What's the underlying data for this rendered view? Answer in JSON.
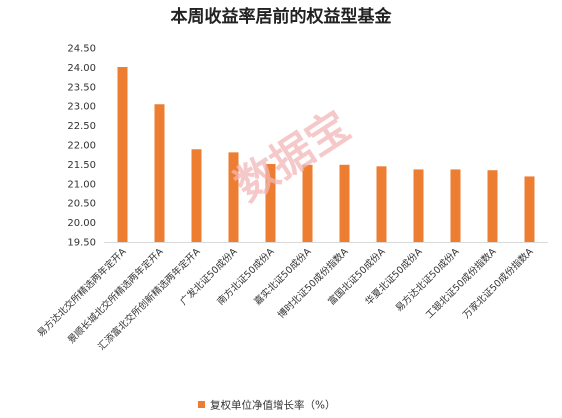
{
  "chart_data": {
    "type": "bar",
    "title": "本周收益率居前的权益型基金",
    "xlabel": "",
    "ylabel": "",
    "ylim": [
      19.5,
      24.5
    ],
    "yticks": [
      24.5,
      24.0,
      23.5,
      23.0,
      22.5,
      22.0,
      21.5,
      21.0,
      20.5,
      20.0,
      19.5
    ],
    "ytick_labels": [
      "24.50",
      "24.00",
      "23.50",
      "23.00",
      "22.50",
      "22.00",
      "21.50",
      "21.00",
      "20.50",
      "20.00",
      "19.50"
    ],
    "grid": false,
    "legend_position": "bottom",
    "categories": [
      "易方达北交所精选两年定开A",
      "景顺长城北交所精选两年定开A",
      "汇添富北交所创新精选两年定开A",
      "广发北证50成份A",
      "南方北证50成份A",
      "嘉实北证50成份A",
      "博时北证50成份指数A",
      "富国北证50成份A",
      "华夏北证50成份A",
      "易方达北证50成份A",
      "工银北证50成份指数A",
      "万家北证50成份指数A"
    ],
    "series": [
      {
        "name": "复权单位净值增长率（%）",
        "color": "#ed7d31",
        "values": [
          24.01,
          23.05,
          21.89,
          21.81,
          21.51,
          21.49,
          21.49,
          21.45,
          21.37,
          21.37,
          21.35,
          21.19
        ]
      }
    ]
  },
  "watermark": {
    "text": "数据宝"
  }
}
